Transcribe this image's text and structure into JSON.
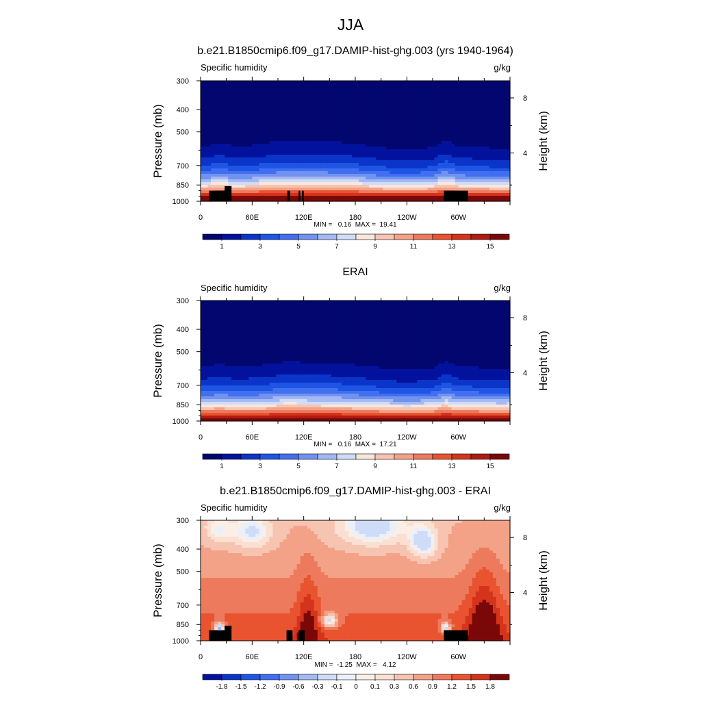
{
  "figure_title": "JJA",
  "chart_data": [
    {
      "type": "heatmap",
      "panel": "model",
      "title": "b.e21.B1850cmip6.f09_g17.DAMIP-hist-ghg.003 (yrs 1940-1964)",
      "left_label": "Specific humidity",
      "units": "g/kg",
      "ylabel": "Pressure (mb)",
      "ylabel_right": "Height (km)",
      "x_ticks": [
        "0",
        "60E",
        "120E",
        "180",
        "120W",
        "60W"
      ],
      "y_ticks": [
        "300",
        "400",
        "500",
        "700",
        "850",
        "1000"
      ],
      "right_ticks": [
        "8",
        "4"
      ],
      "stats": "MIN =   0.16  MAX =  19.41",
      "min": 0.16,
      "max": 19.41,
      "colorbar_labels": [
        "1",
        "3",
        "5",
        "7",
        "9",
        "11",
        "13",
        "15"
      ],
      "xlim": [
        0,
        360
      ],
      "ylim": [
        1000,
        300
      ],
      "terrain": true
    },
    {
      "type": "heatmap",
      "panel": "obs",
      "title": "ERAI",
      "left_label": "Specific humidity",
      "units": "g/kg",
      "ylabel": "Pressure (mb)",
      "ylabel_right": "Height (km)",
      "x_ticks": [
        "0",
        "60E",
        "120E",
        "180",
        "120W",
        "60W"
      ],
      "y_ticks": [
        "300",
        "400",
        "500",
        "700",
        "850",
        "1000"
      ],
      "right_ticks": [
        "8",
        "4"
      ],
      "stats": "MIN =   0.16  MAX =  17.21",
      "min": 0.16,
      "max": 17.21,
      "colorbar_labels": [
        "1",
        "3",
        "5",
        "7",
        "9",
        "11",
        "13",
        "15"
      ],
      "xlim": [
        0,
        360
      ],
      "ylim": [
        1000,
        300
      ],
      "terrain": false
    },
    {
      "type": "heatmap",
      "panel": "diff",
      "title": "b.e21.B1850cmip6.f09_g17.DAMIP-hist-ghg.003 - ERAI",
      "left_label": "Specific humidity",
      "units": "g/kg",
      "ylabel": "Pressure (mb)",
      "ylabel_right": "Height (km)",
      "x_ticks": [
        "0",
        "60E",
        "120E",
        "180",
        "120W",
        "60W"
      ],
      "y_ticks": [
        "300",
        "400",
        "500",
        "700",
        "850",
        "1000"
      ],
      "right_ticks": [
        "8",
        "4"
      ],
      "stats": "MIN =  -1.25  MAX =   4.12",
      "min": -1.25,
      "max": 4.12,
      "colorbar_labels": [
        "-1.8",
        "-1.5",
        "-1.2",
        "-0.9",
        "-0.6",
        "-0.3",
        "-0.1",
        "0",
        "0.1",
        "0.3",
        "0.6",
        "0.9",
        "1.2",
        "1.5",
        "1.8"
      ],
      "xlim": [
        0,
        360
      ],
      "ylim": [
        1000,
        300
      ],
      "terrain": true
    }
  ],
  "colormaps": {
    "full": [
      "#02066f",
      "#03129d",
      "#0b35c9",
      "#1e55e4",
      "#416ff0",
      "#7193ef",
      "#a4b9f3",
      "#cfdcf7",
      "#f9e6dc",
      "#f7c4b2",
      "#f3a287",
      "#ee7a5d",
      "#e9532f",
      "#d4331c",
      "#b01b12",
      "#7b0808"
    ],
    "diff": [
      "#03129d",
      "#0b35c9",
      "#1e55e4",
      "#416ff0",
      "#7193ef",
      "#a4b9f3",
      "#cfdcf7",
      "#eaf0fb",
      "#faeee6",
      "#f9e0d2",
      "#f7c4b2",
      "#f3a287",
      "#ee7a5d",
      "#e9532f",
      "#d4331c",
      "#7b0808"
    ]
  },
  "colorbar_order": {
    "full_start": 1,
    "diff_start": 0
  }
}
